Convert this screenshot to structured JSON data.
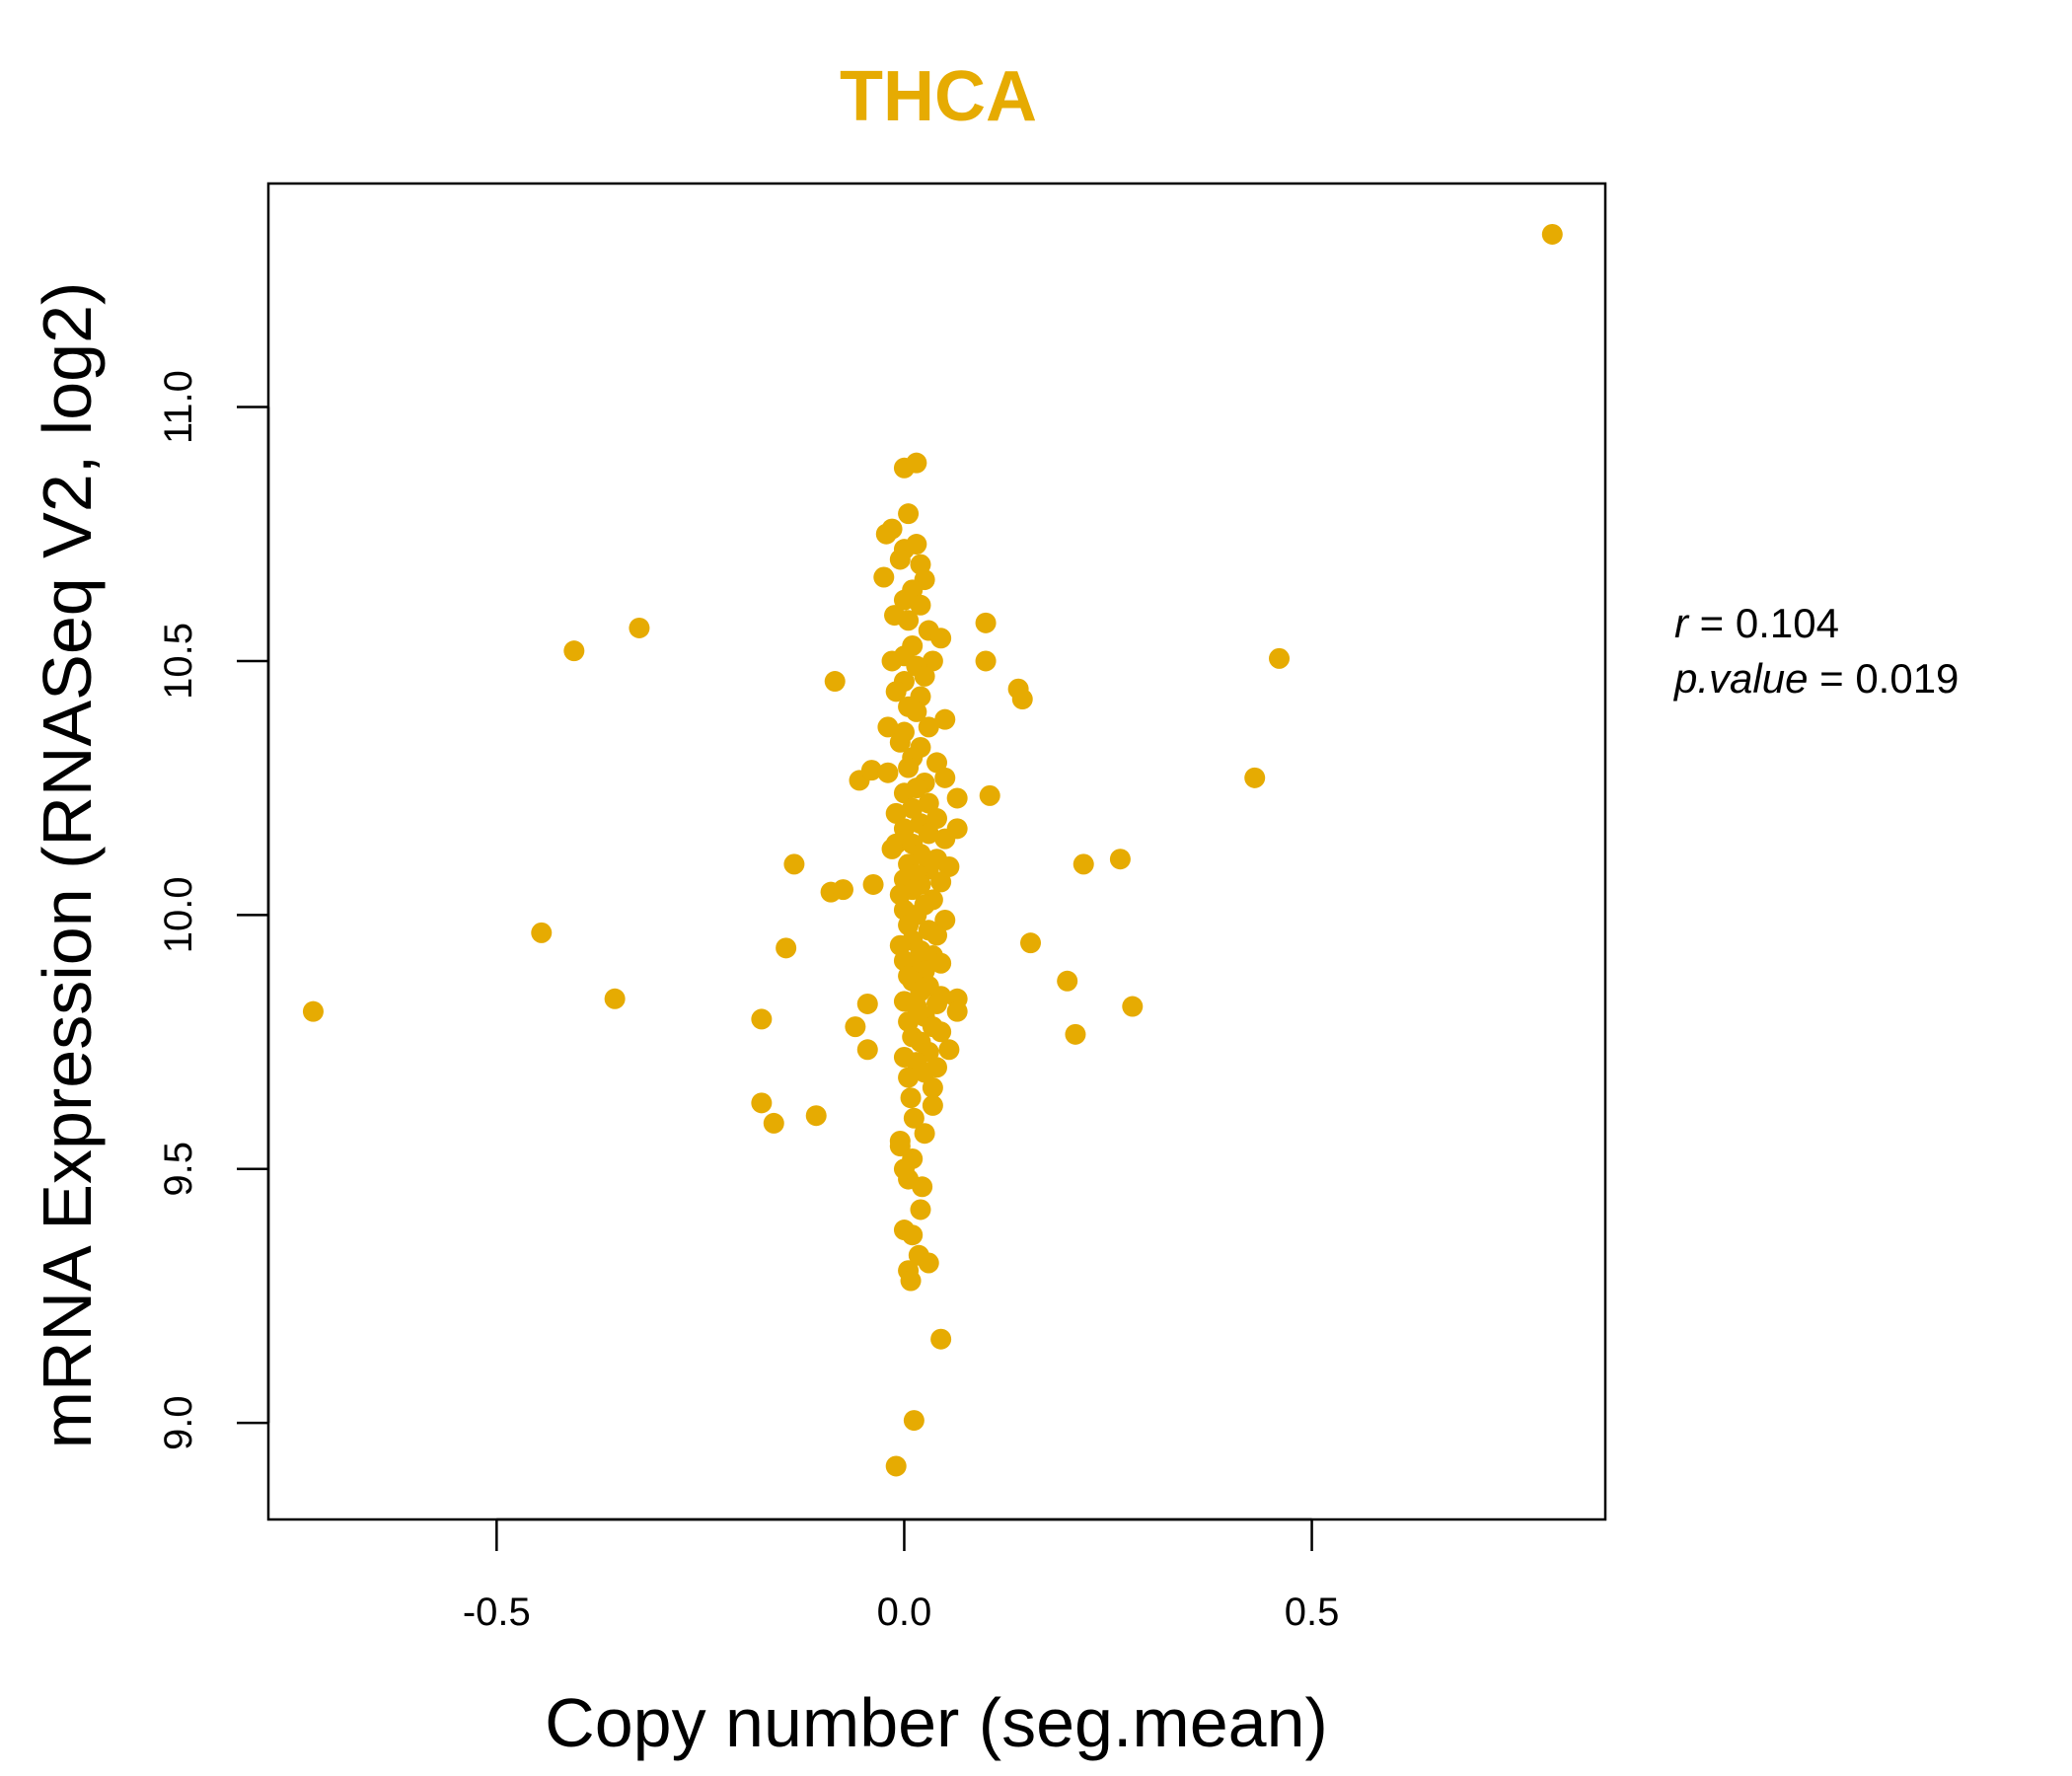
{
  "chart_data": {
    "type": "scatter",
    "title": "THCA",
    "xlabel": "Copy number (seg.mean)",
    "ylabel": "mRNA Expression (RNASeq V2, log2)",
    "xlim": [
      -0.78,
      0.86
    ],
    "ylim": [
      8.81,
      11.44
    ],
    "x_ticks": [
      -0.5,
      0.0,
      0.5
    ],
    "x_tick_labels": [
      "-0.5",
      "0.0",
      "0.5"
    ],
    "y_ticks": [
      9.0,
      9.5,
      10.0,
      10.5,
      11.0
    ],
    "y_tick_labels": [
      "9.0",
      "9.5",
      "10.0",
      "10.5",
      "11.0"
    ],
    "point_color": "#E6AB02",
    "title_color": "#E6AB02",
    "annotation": {
      "r_label": "r",
      "r_value": "0.104",
      "p_label": "p.value",
      "p_value": "0.019"
    },
    "points": [
      [
        0.795,
        11.34
      ],
      [
        -0.725,
        9.81
      ],
      [
        -0.445,
        9.965
      ],
      [
        -0.405,
        10.52
      ],
      [
        -0.325,
        10.565
      ],
      [
        -0.355,
        9.835
      ],
      [
        -0.175,
        9.63
      ],
      [
        -0.16,
        9.59
      ],
      [
        -0.175,
        9.795
      ],
      [
        -0.145,
        9.935
      ],
      [
        -0.135,
        10.1
      ],
      [
        -0.108,
        9.605
      ],
      [
        -0.09,
        10.045
      ],
      [
        -0.075,
        10.05
      ],
      [
        -0.085,
        10.46
      ],
      [
        -0.06,
        9.78
      ],
      [
        -0.055,
        10.265
      ],
      [
        -0.045,
        9.825
      ],
      [
        -0.04,
        10.285
      ],
      [
        -0.038,
        10.06
      ],
      [
        -0.045,
        9.735
      ],
      [
        -0.025,
        10.665
      ],
      [
        -0.022,
        10.75
      ],
      [
        -0.02,
        10.37
      ],
      [
        -0.015,
        10.5
      ],
      [
        -0.012,
        10.59
      ],
      [
        -0.01,
        10.14
      ],
      [
        -0.005,
        9.555
      ],
      [
        -0.005,
        9.545
      ],
      [
        0.0,
        9.38
      ],
      [
        -0.01,
        8.915
      ],
      [
        0.012,
        9.005
      ],
      [
        0.005,
        9.3
      ],
      [
        0.008,
        9.28
      ],
      [
        0.01,
        9.37
      ],
      [
        0.018,
        9.33
      ],
      [
        0.03,
        9.315
      ],
      [
        0.022,
        9.465
      ],
      [
        0.02,
        9.42
      ],
      [
        0.005,
        9.48
      ],
      [
        0.0,
        9.5
      ],
      [
        0.01,
        9.52
      ],
      [
        0.025,
        9.57
      ],
      [
        0.012,
        9.6
      ],
      [
        0.035,
        9.625
      ],
      [
        0.008,
        9.64
      ],
      [
        0.045,
        9.165
      ],
      [
        0.0,
        10.88
      ],
      [
        0.015,
        10.89
      ],
      [
        0.005,
        10.79
      ],
      [
        0.015,
        10.73
      ],
      [
        0.02,
        10.69
      ],
      [
        0.0,
        10.72
      ],
      [
        -0.015,
        10.76
      ],
      [
        -0.005,
        10.7
      ],
      [
        0.025,
        10.66
      ],
      [
        0.01,
        10.64
      ],
      [
        0.0,
        10.62
      ],
      [
        0.02,
        10.61
      ],
      [
        0.005,
        10.58
      ],
      [
        0.03,
        10.56
      ],
      [
        0.045,
        10.545
      ],
      [
        0.01,
        10.53
      ],
      [
        0.0,
        10.51
      ],
      [
        0.035,
        10.5
      ],
      [
        0.015,
        10.49
      ],
      [
        0.025,
        10.47
      ],
      [
        0.0,
        10.46
      ],
      [
        -0.01,
        10.44
      ],
      [
        0.02,
        10.43
      ],
      [
        0.005,
        10.41
      ],
      [
        0.015,
        10.4
      ],
      [
        0.05,
        10.385
      ],
      [
        0.03,
        10.37
      ],
      [
        0.0,
        10.36
      ],
      [
        -0.005,
        10.34
      ],
      [
        0.02,
        10.33
      ],
      [
        0.01,
        10.31
      ],
      [
        0.04,
        10.3
      ],
      [
        0.005,
        10.29
      ],
      [
        -0.02,
        10.28
      ],
      [
        0.05,
        10.27
      ],
      [
        0.025,
        10.26
      ],
      [
        0.015,
        10.25
      ],
      [
        0.0,
        10.24
      ],
      [
        0.065,
        10.23
      ],
      [
        0.03,
        10.22
      ],
      [
        0.01,
        10.21
      ],
      [
        -0.01,
        10.2
      ],
      [
        0.04,
        10.19
      ],
      [
        0.02,
        10.18
      ],
      [
        0.0,
        10.17
      ],
      [
        0.065,
        10.17
      ],
      [
        0.03,
        10.16
      ],
      [
        0.05,
        10.15
      ],
      [
        0.01,
        10.14
      ],
      [
        -0.015,
        10.13
      ],
      [
        0.02,
        10.12
      ],
      [
        0.04,
        10.11
      ],
      [
        0.005,
        10.1
      ],
      [
        0.055,
        10.095
      ],
      [
        0.03,
        10.09
      ],
      [
        0.015,
        10.08
      ],
      [
        0.0,
        10.07
      ],
      [
        0.045,
        10.065
      ],
      [
        0.02,
        10.06
      ],
      [
        0.01,
        10.05
      ],
      [
        -0.005,
        10.04
      ],
      [
        0.035,
        10.03
      ],
      [
        0.025,
        10.02
      ],
      [
        0.0,
        10.01
      ],
      [
        0.015,
        10.0
      ],
      [
        0.05,
        9.99
      ],
      [
        0.005,
        9.98
      ],
      [
        0.03,
        9.97
      ],
      [
        0.04,
        9.96
      ],
      [
        0.01,
        9.95
      ],
      [
        -0.005,
        9.94
      ],
      [
        0.02,
        9.93
      ],
      [
        0.035,
        9.92
      ],
      [
        0.0,
        9.91
      ],
      [
        0.045,
        9.905
      ],
      [
        0.015,
        9.9
      ],
      [
        0.025,
        9.89
      ],
      [
        0.005,
        9.88
      ],
      [
        0.01,
        9.87
      ],
      [
        0.03,
        9.86
      ],
      [
        0.02,
        9.85
      ],
      [
        0.045,
        9.84
      ],
      [
        0.065,
        9.835
      ],
      [
        0.0,
        9.83
      ],
      [
        0.04,
        9.825
      ],
      [
        0.015,
        9.82
      ],
      [
        0.065,
        9.81
      ],
      [
        0.025,
        9.8
      ],
      [
        0.005,
        9.79
      ],
      [
        0.035,
        9.78
      ],
      [
        0.045,
        9.77
      ],
      [
        0.01,
        9.76
      ],
      [
        0.02,
        9.75
      ],
      [
        0.055,
        9.735
      ],
      [
        0.03,
        9.73
      ],
      [
        0.0,
        9.72
      ],
      [
        0.015,
        9.71
      ],
      [
        0.04,
        9.7
      ],
      [
        0.025,
        9.69
      ],
      [
        0.005,
        9.68
      ],
      [
        0.035,
        9.66
      ],
      [
        0.1,
        10.575
      ],
      [
        0.1,
        10.5
      ],
      [
        0.14,
        10.445
      ],
      [
        0.145,
        10.425
      ],
      [
        0.105,
        10.235
      ],
      [
        0.155,
        9.945
      ],
      [
        0.2,
        9.87
      ],
      [
        0.21,
        9.765
      ],
      [
        0.22,
        10.1
      ],
      [
        0.265,
        10.11
      ],
      [
        0.28,
        9.82
      ],
      [
        0.43,
        10.27
      ],
      [
        0.46,
        10.505
      ]
    ]
  }
}
